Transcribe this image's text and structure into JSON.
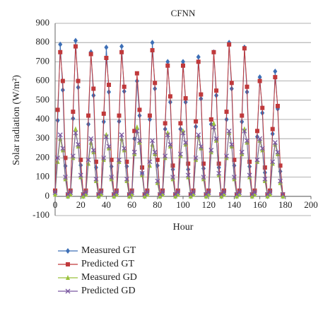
{
  "chart_data": {
    "type": "line",
    "title": "CFNN",
    "x_label": "Hour",
    "y_label": "Solar radiation (W/m²)",
    "x": [
      0,
      2,
      4,
      6,
      8,
      10,
      12,
      14,
      16,
      18,
      20,
      22,
      24,
      26,
      28,
      30,
      32,
      34,
      36,
      38,
      40,
      42,
      44,
      46,
      48,
      50,
      52,
      54,
      56,
      58,
      60,
      62,
      64,
      66,
      68,
      70,
      72,
      74,
      76,
      78,
      80,
      82,
      84,
      86,
      88,
      90,
      92,
      94,
      96,
      98,
      100,
      102,
      104,
      106,
      108,
      110,
      112,
      114,
      116,
      118,
      120,
      122,
      124,
      126,
      128,
      130,
      132,
      134,
      136,
      138,
      140,
      142,
      144,
      146,
      148,
      150,
      152,
      154,
      156,
      158,
      160,
      162,
      164,
      166,
      168,
      170,
      172,
      174,
      176,
      178
    ],
    "series": [
      {
        "name": "Measured GT",
        "color": "#3d6fb6",
        "marker": "diamond",
        "values": [
          20,
          395,
          790,
          553,
          158,
          0,
          20,
          405,
          810,
          567,
          162,
          0,
          20,
          375,
          750,
          525,
          150,
          0,
          20,
          388,
          775,
          543,
          155,
          0,
          20,
          390,
          780,
          546,
          156,
          0,
          20,
          300,
          600,
          420,
          120,
          0,
          20,
          400,
          800,
          560,
          160,
          0,
          20,
          350,
          700,
          490,
          140,
          0,
          20,
          350,
          700,
          490,
          140,
          0,
          20,
          363,
          725,
          508,
          145,
          0,
          20,
          375,
          750,
          525,
          150,
          0,
          20,
          400,
          800,
          560,
          160,
          0,
          20,
          388,
          775,
          543,
          155,
          0,
          20,
          310,
          620,
          434,
          124,
          0,
          20,
          325,
          650,
          455,
          130,
          0
        ]
      },
      {
        "name": "Predicted GT",
        "color": "#c0393b",
        "marker": "square",
        "values": [
          30,
          450,
          750,
          600,
          200,
          10,
          30,
          440,
          780,
          600,
          190,
          10,
          30,
          420,
          740,
          560,
          180,
          10,
          30,
          430,
          720,
          580,
          190,
          10,
          30,
          420,
          750,
          570,
          180,
          10,
          30,
          340,
          640,
          450,
          150,
          10,
          30,
          420,
          760,
          590,
          190,
          10,
          30,
          380,
          680,
          520,
          160,
          10,
          30,
          380,
          680,
          510,
          170,
          10,
          30,
          390,
          700,
          530,
          170,
          10,
          30,
          400,
          750,
          550,
          170,
          10,
          30,
          440,
          790,
          590,
          190,
          10,
          30,
          420,
          770,
          570,
          180,
          10,
          30,
          340,
          600,
          460,
          150,
          10,
          30,
          350,
          620,
          470,
          160,
          10
        ]
      },
      {
        "name": "Measured GD",
        "color": "#9bc23c",
        "marker": "triangle",
        "values": [
          10,
          180,
          300,
          240,
          90,
          0,
          10,
          200,
          350,
          260,
          100,
          0,
          10,
          170,
          280,
          230,
          80,
          0,
          10,
          190,
          320,
          250,
          90,
          0,
          10,
          180,
          300,
          240,
          80,
          0,
          10,
          220,
          360,
          280,
          110,
          0,
          10,
          160,
          270,
          220,
          70,
          0,
          10,
          200,
          330,
          260,
          90,
          0,
          10,
          210,
          340,
          270,
          100,
          0,
          10,
          190,
          310,
          250,
          90,
          0,
          10,
          230,
          380,
          290,
          110,
          0,
          10,
          200,
          330,
          260,
          90,
          0,
          10,
          220,
          350,
          280,
          100,
          0,
          10,
          180,
          290,
          240,
          80,
          0,
          10,
          170,
          270,
          220,
          70,
          0
        ]
      },
      {
        "name": "Predicted GD",
        "color": "#7a58a0",
        "marker": "x",
        "values": [
          20,
          200,
          320,
          250,
          100,
          10,
          20,
          210,
          330,
          270,
          110,
          10,
          20,
          190,
          300,
          240,
          90,
          10,
          20,
          200,
          310,
          260,
          100,
          10,
          20,
          190,
          320,
          250,
          90,
          10,
          20,
          230,
          340,
          290,
          120,
          10,
          20,
          180,
          290,
          230,
          80,
          10,
          20,
          210,
          320,
          270,
          100,
          10,
          20,
          220,
          330,
          280,
          110,
          10,
          20,
          200,
          320,
          260,
          100,
          10,
          20,
          240,
          360,
          300,
          120,
          10,
          20,
          210,
          340,
          270,
          100,
          10,
          20,
          230,
          340,
          290,
          110,
          10,
          20,
          190,
          300,
          250,
          90,
          10,
          20,
          180,
          280,
          230,
          80,
          10
        ]
      }
    ],
    "xlim": [
      0,
      200
    ],
    "xticks": [
      0,
      20,
      40,
      60,
      80,
      100,
      120,
      140,
      160,
      180,
      200
    ],
    "ylim": [
      -100,
      900
    ],
    "yticks": [
      -100,
      0,
      100,
      200,
      300,
      400,
      500,
      600,
      700,
      800,
      900
    ],
    "grid": true
  }
}
